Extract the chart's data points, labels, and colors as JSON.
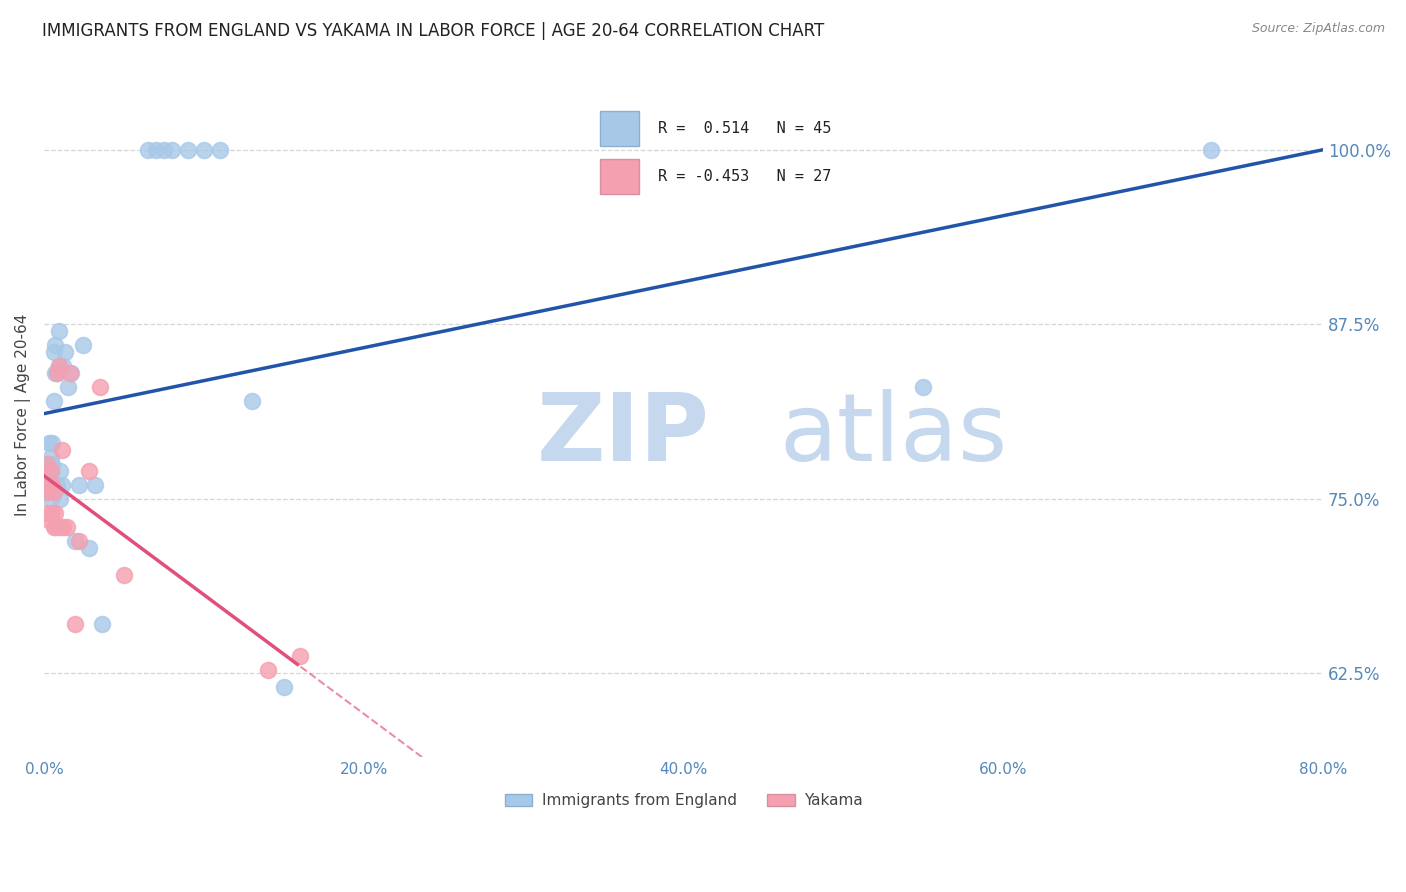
{
  "title": "IMMIGRANTS FROM ENGLAND VS YAKAMA IN LABOR FORCE | AGE 20-64 CORRELATION CHART",
  "source": "Source: ZipAtlas.com",
  "ylabel": "In Labor Force | Age 20-64",
  "xlabel_ticks": [
    "0.0%",
    "20.0%",
    "40.0%",
    "60.0%",
    "80.0%"
  ],
  "xlabel_vals": [
    0.0,
    0.2,
    0.4,
    0.6,
    0.8
  ],
  "ylabel_ticks": [
    "62.5%",
    "75.0%",
    "87.5%",
    "100.0%"
  ],
  "ylabel_vals": [
    0.625,
    0.75,
    0.875,
    1.0
  ],
  "xlim": [
    0.0,
    0.8
  ],
  "ylim": [
    0.565,
    1.055
  ],
  "legend_entries": [
    {
      "label": "R =  0.514   N = 45",
      "color": "#a8c8e8"
    },
    {
      "label": "R = -0.453   N = 27",
      "color": "#f4a0b0"
    }
  ],
  "england_x": [
    0.001,
    0.001,
    0.002,
    0.002,
    0.003,
    0.003,
    0.003,
    0.004,
    0.004,
    0.004,
    0.005,
    0.005,
    0.005,
    0.006,
    0.006,
    0.007,
    0.007,
    0.008,
    0.008,
    0.009,
    0.009,
    0.01,
    0.01,
    0.011,
    0.012,
    0.013,
    0.015,
    0.017,
    0.019,
    0.022,
    0.024,
    0.028,
    0.032,
    0.036,
    0.065,
    0.07,
    0.075,
    0.08,
    0.09,
    0.1,
    0.11,
    0.13,
    0.15,
    0.55,
    0.73
  ],
  "england_y": [
    0.755,
    0.77,
    0.755,
    0.775,
    0.76,
    0.775,
    0.79,
    0.75,
    0.77,
    0.78,
    0.76,
    0.775,
    0.79,
    0.82,
    0.855,
    0.84,
    0.86,
    0.76,
    0.84,
    0.87,
    0.845,
    0.75,
    0.77,
    0.76,
    0.845,
    0.855,
    0.83,
    0.84,
    0.72,
    0.76,
    0.86,
    0.715,
    0.76,
    0.66,
    1.0,
    1.0,
    1.0,
    1.0,
    1.0,
    1.0,
    1.0,
    0.82,
    0.615,
    0.83,
    1.0
  ],
  "yakama_x": [
    0.001,
    0.002,
    0.002,
    0.003,
    0.003,
    0.004,
    0.004,
    0.005,
    0.005,
    0.006,
    0.006,
    0.007,
    0.007,
    0.008,
    0.009,
    0.01,
    0.011,
    0.012,
    0.014,
    0.016,
    0.019,
    0.022,
    0.028,
    0.035,
    0.05,
    0.14,
    0.16
  ],
  "yakama_y": [
    0.74,
    0.755,
    0.775,
    0.76,
    0.735,
    0.76,
    0.77,
    0.74,
    0.76,
    0.73,
    0.755,
    0.74,
    0.73,
    0.84,
    0.845,
    0.73,
    0.785,
    0.73,
    0.73,
    0.84,
    0.66,
    0.72,
    0.77,
    0.83,
    0.695,
    0.627,
    0.637
  ],
  "england_line_color": "#2255aa",
  "yakama_line_color": "#e0507a",
  "england_dot_color": "#a8c8e8",
  "yakama_dot_color": "#f4a0b0",
  "watermark_zip_color": "#c5d8ee",
  "watermark_atlas_color": "#c5d8ee",
  "background_color": "#ffffff",
  "grid_color": "#cccccc",
  "title_fontsize": 12,
  "axis_label_color": "#5588bb"
}
